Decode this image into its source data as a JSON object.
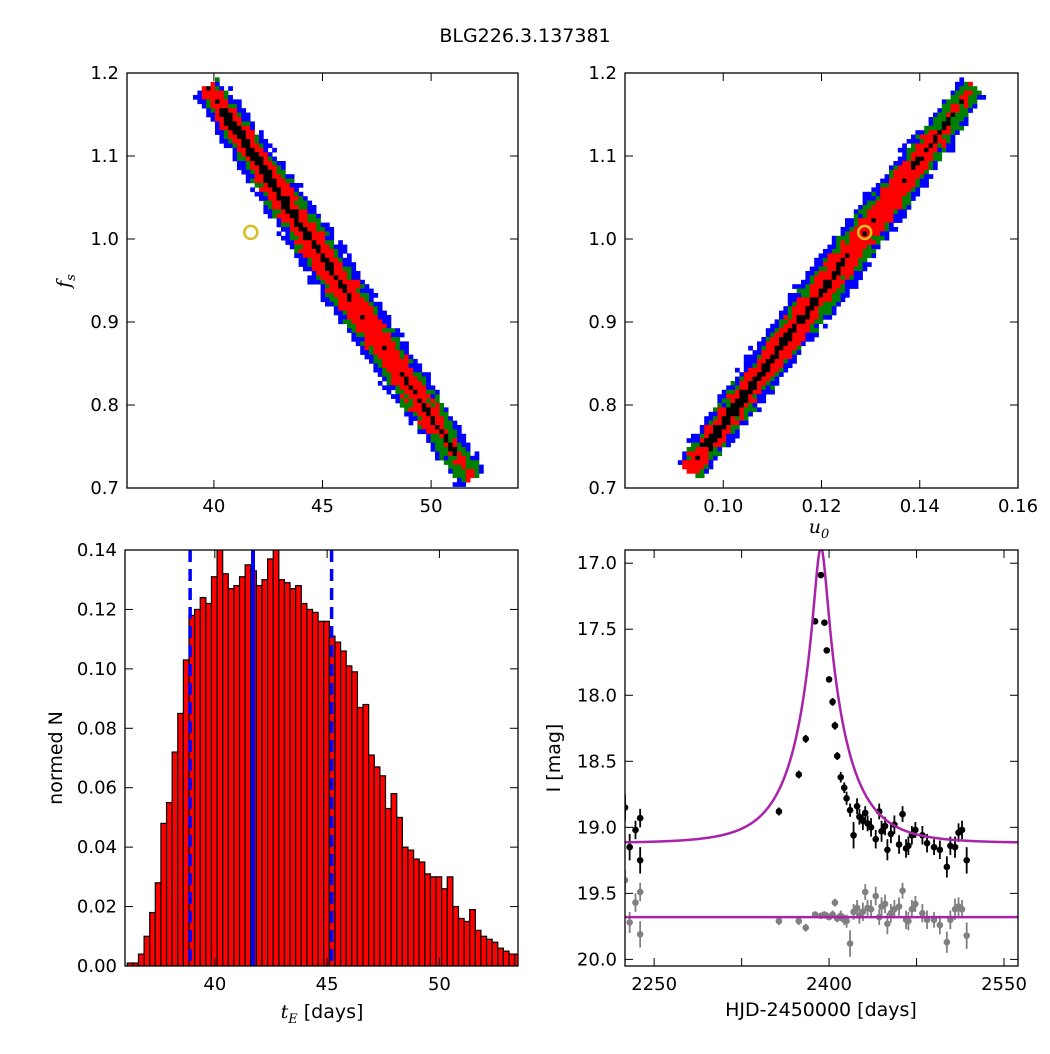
{
  "figure_title": "BLG226.3.137381",
  "chart_data": [
    {
      "id": "tE-fs",
      "type": "heatmap",
      "xlabel": "",
      "ylabel": "f",
      "ylabel_sub": "s",
      "xlim": [
        36,
        54
      ],
      "ylim": [
        0.7,
        1.2
      ],
      "x_ticks": [
        "40",
        "45",
        "50"
      ],
      "x_tick_values": [
        40,
        45,
        50
      ],
      "y_ticks": [
        "0.7",
        "0.8",
        "0.9",
        "1.0",
        "1.1",
        "1.2"
      ],
      "y_tick_values": [
        0.7,
        0.8,
        0.9,
        1.0,
        1.1,
        1.2
      ],
      "band": {
        "x_at_top": 39.8,
        "x_at_bottom": 51.8,
        "y_top": 1.18,
        "y_bottom": 0.715
      },
      "best_fit_point": {
        "x": 41.7,
        "y": 1.008
      },
      "contour_colors": [
        "#0000ff",
        "#008000",
        "#ff0000",
        "#000000"
      ]
    },
    {
      "id": "u0-fs",
      "type": "heatmap",
      "xlabel": "u",
      "xlabel_sub": "0",
      "ylabel": "",
      "xlim": [
        0.08,
        0.16
      ],
      "ylim": [
        0.7,
        1.2
      ],
      "x_ticks": [
        "0.10",
        "0.12",
        "0.14",
        "0.16"
      ],
      "x_tick_values": [
        0.1,
        0.12,
        0.14,
        0.16
      ],
      "y_ticks": [
        "0.7",
        "0.8",
        "0.9",
        "1.0",
        "1.1",
        "1.2"
      ],
      "y_tick_values": [
        0.7,
        0.8,
        0.9,
        1.0,
        1.1,
        1.2
      ],
      "band": {
        "x_at_bottom": 0.0935,
        "x_at_top": 0.1505,
        "y_bottom": 0.725,
        "y_top": 1.18
      },
      "best_fit_point": {
        "x": 0.1288,
        "y": 1.008
      },
      "contour_colors": [
        "#0000ff",
        "#008000",
        "#ff0000",
        "#000000"
      ]
    },
    {
      "id": "tE-histogram",
      "type": "bar",
      "xlabel": "t",
      "xlabel_sub": "E",
      "xlabel_suffix": " [days]",
      "ylabel": "normed N",
      "xlim": [
        36,
        53.5
      ],
      "ylim": [
        0,
        0.14
      ],
      "x_ticks": [
        "40",
        "45",
        "50"
      ],
      "x_tick_values": [
        40,
        45,
        50
      ],
      "y_ticks": [
        "0.00",
        "0.02",
        "0.04",
        "0.06",
        "0.08",
        "0.10",
        "0.12",
        "0.14"
      ],
      "y_tick_values": [
        0,
        0.02,
        0.04,
        0.06,
        0.08,
        0.1,
        0.12,
        0.14
      ],
      "bin_start": 36.1,
      "bin_width": 0.25,
      "values": [
        0.001,
        0.001,
        0.004,
        0.01,
        0.018,
        0.028,
        0.048,
        0.055,
        0.072,
        0.085,
        0.103,
        0.118,
        0.12,
        0.124,
        0.122,
        0.131,
        0.14,
        0.132,
        0.127,
        0.128,
        0.131,
        0.135,
        0.133,
        0.128,
        0.13,
        0.137,
        0.14,
        0.13,
        0.129,
        0.127,
        0.128,
        0.122,
        0.12,
        0.119,
        0.116,
        0.116,
        0.111,
        0.109,
        0.106,
        0.101,
        0.099,
        0.087,
        0.088,
        0.071,
        0.067,
        0.064,
        0.053,
        0.058,
        0.05,
        0.04,
        0.039,
        0.036,
        0.035,
        0.031,
        0.03,
        0.03,
        0.026,
        0.03,
        0.02,
        0.016,
        0.015,
        0.019,
        0.012,
        0.01,
        0.009,
        0.008,
        0.006,
        0.005,
        0.004,
        0.004,
        0.003,
        0.002,
        0.002,
        0.002,
        0.001,
        0.001,
        0.001,
        0.001,
        0.001,
        0.001,
        0.001
      ],
      "bar_color": "#ff0000",
      "median_line_x": 41.7,
      "interval_lines_x": [
        38.9,
        45.2
      ],
      "line_color": "#0000ff"
    },
    {
      "id": "light-curve",
      "type": "scatter",
      "xlabel": "HJD-2450000 [days]",
      "ylabel": "I [mag]",
      "xlim": [
        2225,
        2562
      ],
      "ylim": [
        20.05,
        16.9
      ],
      "x_ticks": [
        "2250",
        "2400",
        "2550"
      ],
      "x_tick_values": [
        2250,
        2400,
        2550
      ],
      "x_minor_tick_values": [
        2325,
        2475
      ],
      "y_ticks": [
        "17.0",
        "17.5",
        "18.0",
        "18.5",
        "19.0",
        "19.5",
        "20.0"
      ],
      "y_tick_values": [
        17.0,
        17.5,
        18.0,
        18.5,
        19.0,
        19.5,
        20.0
      ],
      "model": {
        "t0": 2393,
        "tE": 41.7,
        "u0": 0.128,
        "baseline_mag": 19.12,
        "residual_baseline": 19.68,
        "color": "#aa22aa"
      },
      "series": [
        {
          "color": "#000000",
          "points": [
            [
              2225,
              18.85,
              0.1
            ],
            [
              2229,
              19.15,
              0.1
            ],
            [
              2234,
              19.02,
              0.07
            ],
            [
              2238,
              18.93,
              0.07
            ],
            [
              2238,
              19.25,
              0.1
            ],
            [
              2357,
              18.88,
              0.03
            ],
            [
              2374,
              18.6,
              0.03
            ],
            [
              2380,
              18.33,
              0.03
            ],
            [
              2388,
              17.44,
              0.02
            ],
            [
              2393,
              17.09,
              0.02
            ],
            [
              2396,
              17.45,
              0.02
            ],
            [
              2398,
              17.66,
              0.02
            ],
            [
              2400,
              17.88,
              0.02
            ],
            [
              2403,
              18.05,
              0.03
            ],
            [
              2405,
              18.23,
              0.03
            ],
            [
              2407,
              18.46,
              0.03
            ],
            [
              2410,
              18.62,
              0.04
            ],
            [
              2413,
              18.7,
              0.04
            ],
            [
              2415,
              18.78,
              0.05
            ],
            [
              2418,
              18.87,
              0.05
            ],
            [
              2421,
              19.06,
              0.1
            ],
            [
              2424,
              18.84,
              0.06
            ],
            [
              2426,
              18.92,
              0.06
            ],
            [
              2429,
              18.95,
              0.07
            ],
            [
              2431,
              18.89,
              0.05
            ],
            [
              2433,
              18.97,
              0.06
            ],
            [
              2436,
              19.0,
              0.07
            ],
            [
              2440,
              19.09,
              0.07
            ],
            [
              2443,
              18.88,
              0.06
            ],
            [
              2445,
              19.03,
              0.08
            ],
            [
              2448,
              18.99,
              0.07
            ],
            [
              2450,
              19.17,
              0.08
            ],
            [
              2453,
              19.05,
              0.07
            ],
            [
              2456,
              18.98,
              0.07
            ],
            [
              2460,
              19.13,
              0.07
            ],
            [
              2463,
              18.9,
              0.06
            ],
            [
              2466,
              19.16,
              0.07
            ],
            [
              2468,
              19.14,
              0.07
            ],
            [
              2471,
              19.06,
              0.07
            ],
            [
              2474,
              19.02,
              0.06
            ],
            [
              2480,
              19.06,
              0.07
            ],
            [
              2484,
              19.12,
              0.07
            ],
            [
              2490,
              19.15,
              0.06
            ],
            [
              2495,
              19.17,
              0.07
            ],
            [
              2501,
              19.3,
              0.08
            ],
            [
              2504,
              19.14,
              0.07
            ],
            [
              2508,
              19.15,
              0.08
            ],
            [
              2511,
              19.04,
              0.07
            ],
            [
              2514,
              19.02,
              0.07
            ],
            [
              2518,
              19.25,
              0.1
            ]
          ]
        },
        {
          "color": "#808080",
          "points": [
            [
              2225,
              19.4,
              0.08
            ],
            [
              2229,
              19.72,
              0.08
            ],
            [
              2234,
              19.57,
              0.07
            ],
            [
              2238,
              19.49,
              0.07
            ],
            [
              2238,
              19.81,
              0.1
            ],
            [
              2357,
              19.71,
              0.03
            ],
            [
              2374,
              19.71,
              0.03
            ],
            [
              2380,
              19.76,
              0.03
            ],
            [
              2388,
              19.66,
              0.02
            ],
            [
              2393,
              19.67,
              0.02
            ],
            [
              2396,
              19.66,
              0.02
            ],
            [
              2398,
              19.67,
              0.02
            ],
            [
              2400,
              19.68,
              0.02
            ],
            [
              2403,
              19.66,
              0.03
            ],
            [
              2405,
              19.57,
              0.03
            ],
            [
              2407,
              19.69,
              0.03
            ],
            [
              2410,
              19.67,
              0.04
            ],
            [
              2413,
              19.7,
              0.04
            ],
            [
              2415,
              19.71,
              0.05
            ],
            [
              2418,
              19.88,
              0.1
            ],
            [
              2421,
              19.64,
              0.06
            ],
            [
              2424,
              19.61,
              0.06
            ],
            [
              2426,
              19.67,
              0.06
            ],
            [
              2429,
              19.64,
              0.07
            ],
            [
              2431,
              19.49,
              0.06
            ],
            [
              2433,
              19.61,
              0.06
            ],
            [
              2436,
              19.62,
              0.07
            ],
            [
              2440,
              19.52,
              0.07
            ],
            [
              2443,
              19.68,
              0.06
            ],
            [
              2445,
              19.6,
              0.07
            ],
            [
              2448,
              19.58,
              0.07
            ],
            [
              2450,
              19.73,
              0.08
            ],
            [
              2453,
              19.65,
              0.07
            ],
            [
              2456,
              19.62,
              0.07
            ],
            [
              2460,
              19.6,
              0.07
            ],
            [
              2463,
              19.48,
              0.06
            ],
            [
              2466,
              19.7,
              0.07
            ],
            [
              2468,
              19.71,
              0.07
            ],
            [
              2471,
              19.62,
              0.07
            ],
            [
              2474,
              19.58,
              0.06
            ],
            [
              2480,
              19.65,
              0.07
            ],
            [
              2484,
              19.7,
              0.07
            ],
            [
              2490,
              19.7,
              0.06
            ],
            [
              2495,
              19.74,
              0.07
            ],
            [
              2501,
              19.87,
              0.08
            ],
            [
              2504,
              19.7,
              0.07
            ],
            [
              2508,
              19.62,
              0.08
            ],
            [
              2511,
              19.6,
              0.07
            ],
            [
              2514,
              19.62,
              0.07
            ],
            [
              2518,
              19.82,
              0.1
            ]
          ]
        }
      ]
    }
  ]
}
